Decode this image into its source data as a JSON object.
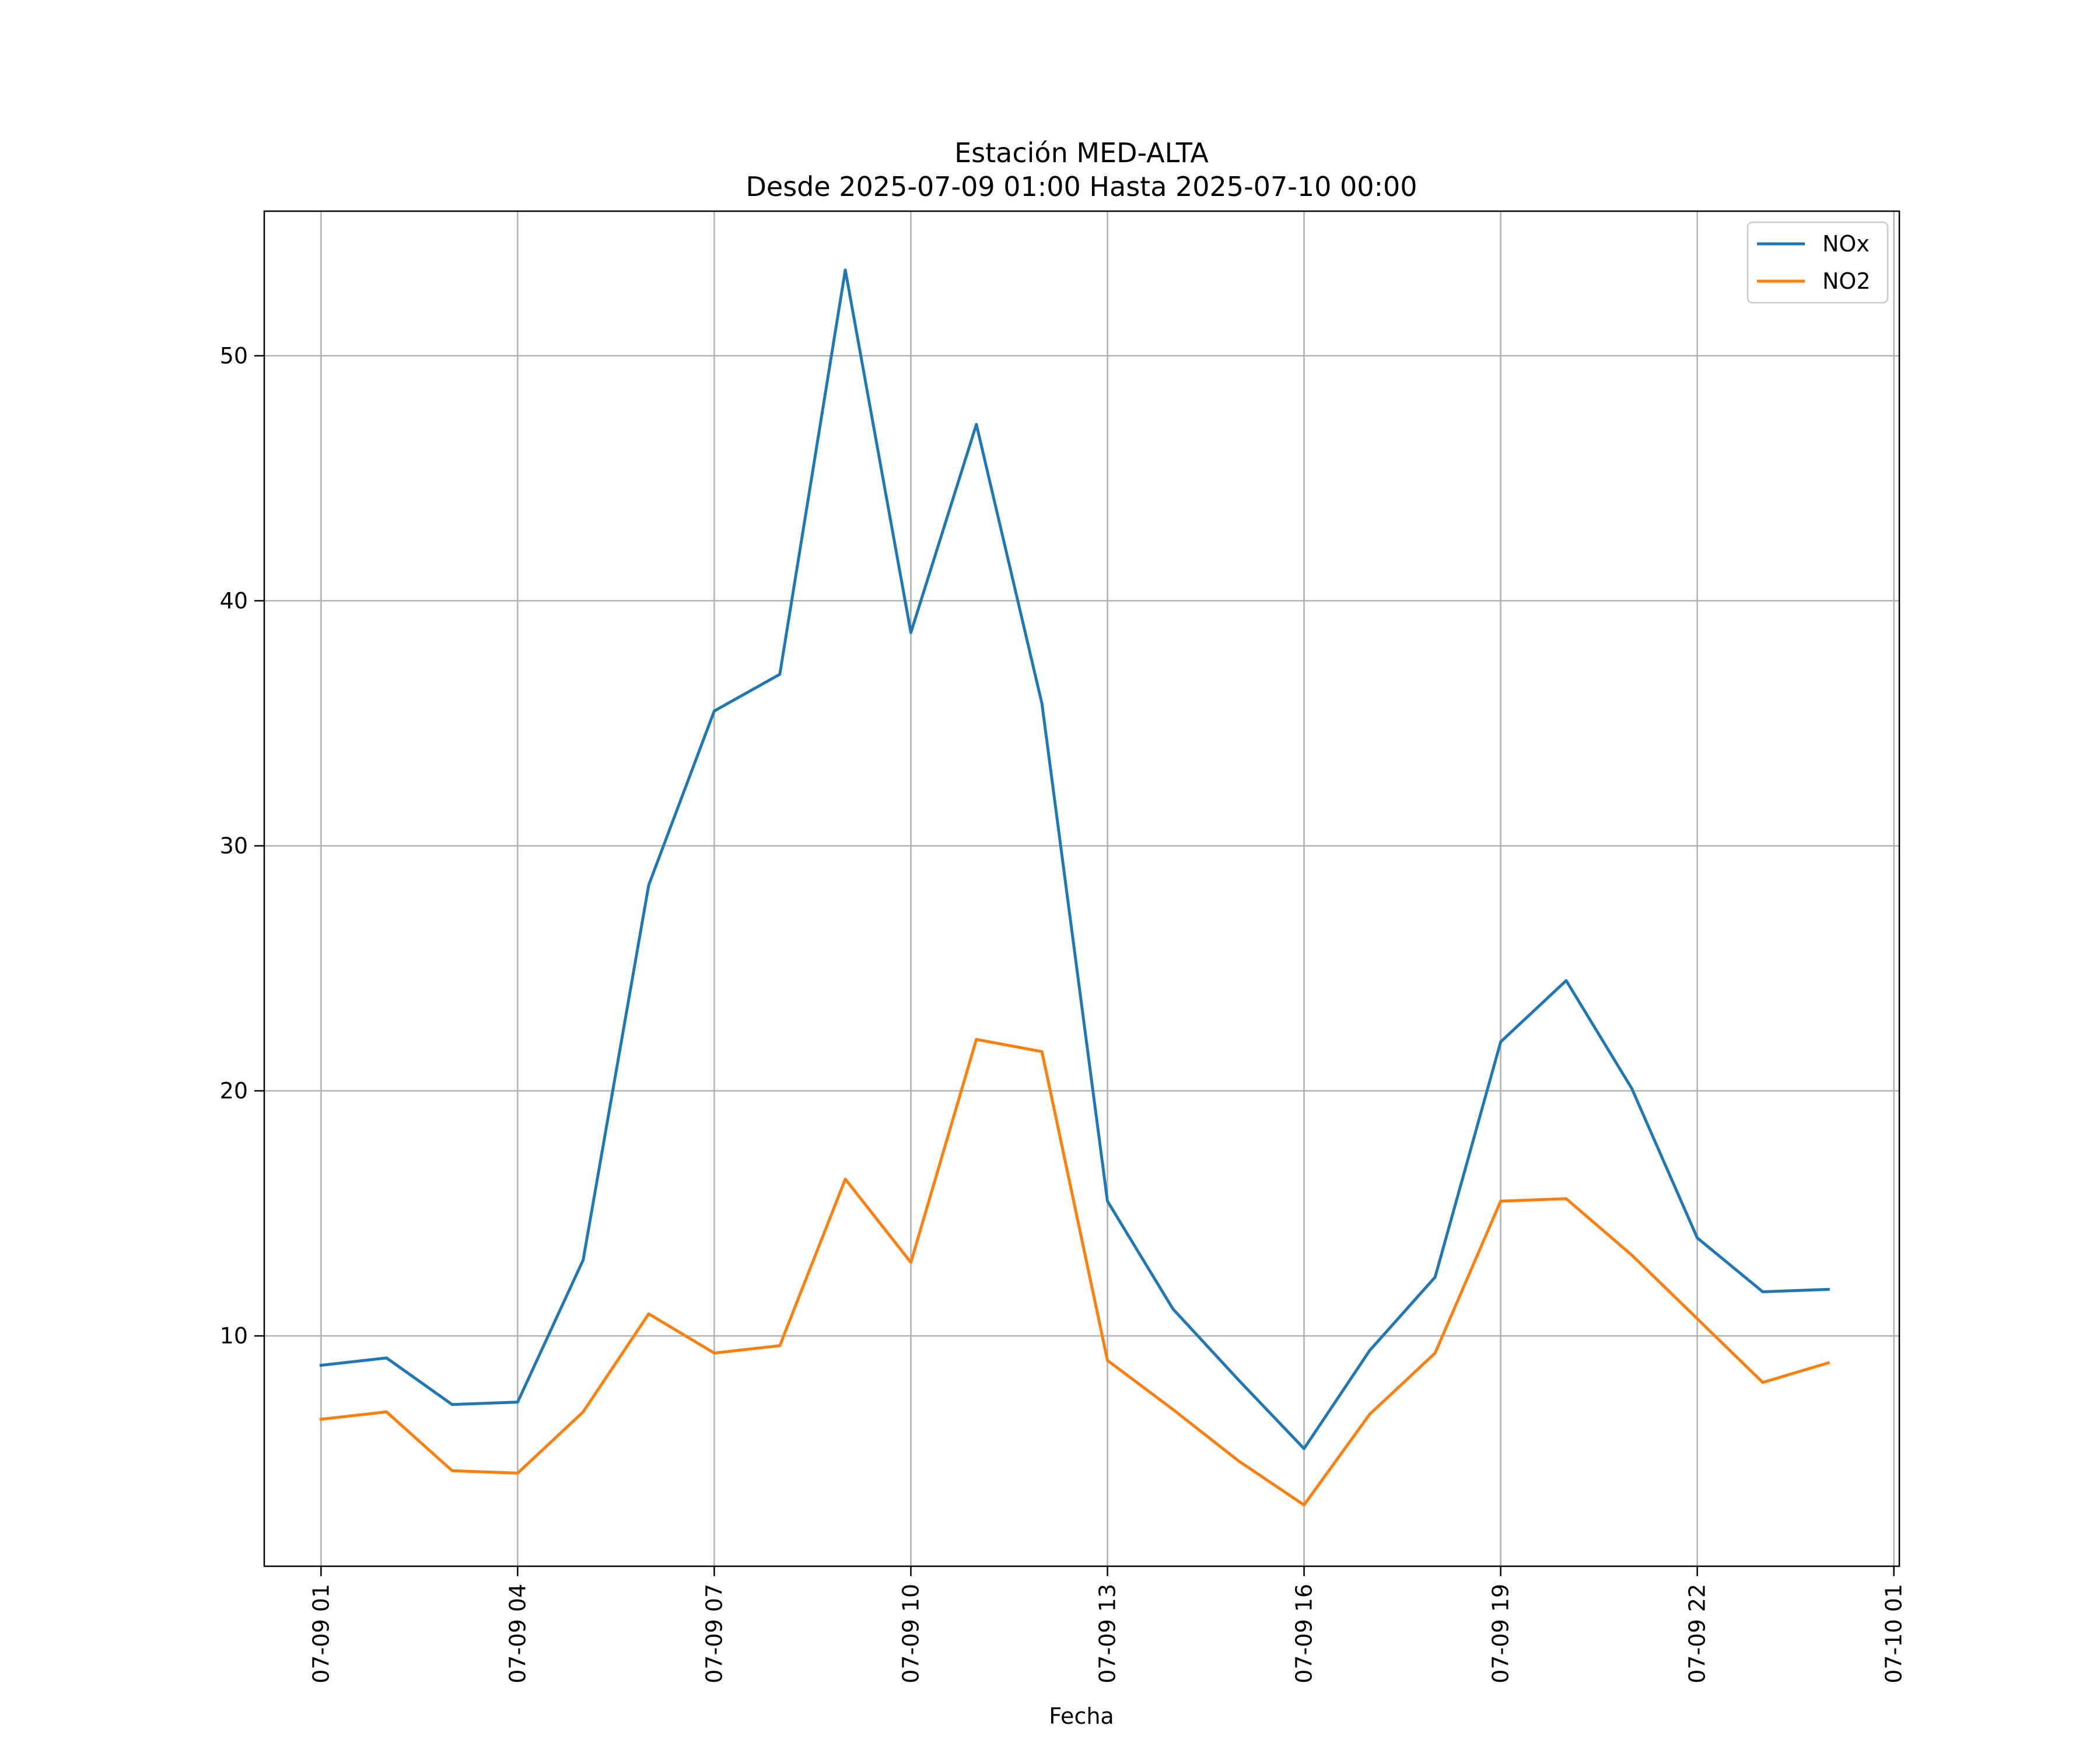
{
  "chart_data": {
    "type": "line",
    "title": "Estación MED-ALTA",
    "subtitle": "Desde 2025-07-09 01:00 Hasta 2025-07-10 00:00",
    "xlabel": "Fecha",
    "ylabel": "",
    "x": [
      "2025-07-09 01:00",
      "2025-07-09 02:00",
      "2025-07-09 03:00",
      "2025-07-09 04:00",
      "2025-07-09 05:00",
      "2025-07-09 06:00",
      "2025-07-09 07:00",
      "2025-07-09 08:00",
      "2025-07-09 09:00",
      "2025-07-09 10:00",
      "2025-07-09 11:00",
      "2025-07-09 12:00",
      "2025-07-09 13:00",
      "2025-07-09 14:00",
      "2025-07-09 15:00",
      "2025-07-09 16:00",
      "2025-07-09 17:00",
      "2025-07-09 18:00",
      "2025-07-09 19:00",
      "2025-07-09 20:00",
      "2025-07-09 21:00",
      "2025-07-09 22:00",
      "2025-07-09 23:00",
      "2025-07-10 00:00"
    ],
    "xlim": [
      "2025-07-09 00:08",
      "2025-07-10 01:05"
    ],
    "ylim": [
      0.6,
      55.9
    ],
    "x_ticks": [
      "07-09 01",
      "07-09 04",
      "07-09 07",
      "07-09 10",
      "07-09 13",
      "07-09 16",
      "07-09 19",
      "07-09 22",
      "07-10 01"
    ],
    "x_tick_times": [
      "2025-07-09 01:00",
      "2025-07-09 04:00",
      "2025-07-09 07:00",
      "2025-07-09 10:00",
      "2025-07-09 13:00",
      "2025-07-09 16:00",
      "2025-07-09 19:00",
      "2025-07-09 22:00",
      "2025-07-10 01:00"
    ],
    "y_ticks": [
      10,
      20,
      30,
      40,
      50
    ],
    "y_tick_labels": [
      "10",
      "20",
      "30",
      "40",
      "50"
    ],
    "grid": true,
    "legend_position": "top-right",
    "series": [
      {
        "name": "NOx",
        "color": "#1f77b4",
        "values": [
          8.8,
          9.1,
          7.2,
          7.3,
          13.1,
          28.4,
          35.5,
          37.0,
          53.5,
          38.7,
          47.2,
          35.8,
          15.5,
          11.1,
          8.2,
          5.4,
          9.4,
          12.4,
          22.0,
          24.5,
          20.1,
          14.0,
          11.8,
          11.9
        ]
      },
      {
        "name": "NO2",
        "color": "#ff7f0e",
        "values": [
          6.6,
          6.9,
          4.5,
          4.4,
          6.9,
          10.9,
          9.3,
          9.6,
          16.4,
          13.0,
          22.1,
          21.6,
          9.0,
          7.0,
          4.9,
          3.1,
          6.8,
          9.3,
          15.5,
          15.6,
          13.3,
          10.7,
          8.1,
          8.9
        ]
      }
    ]
  }
}
